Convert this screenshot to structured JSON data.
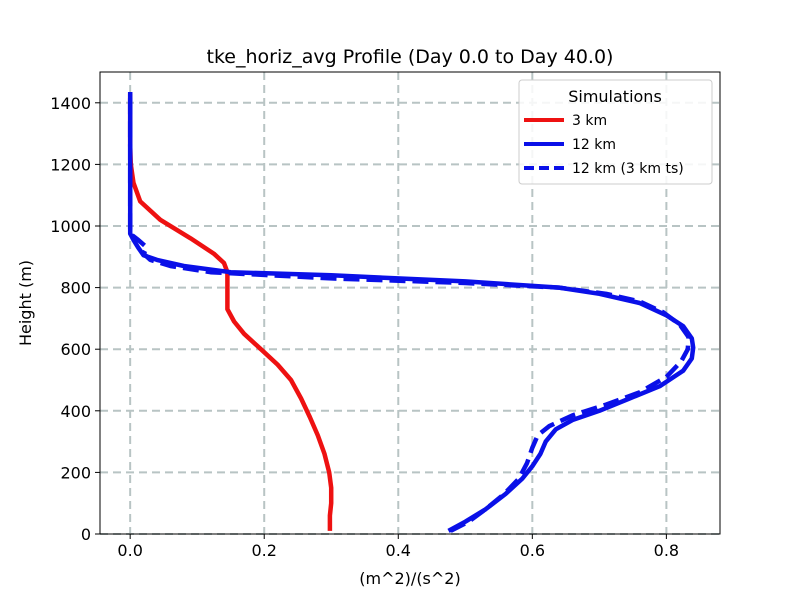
{
  "chart_data": {
    "type": "line",
    "title": "tke_horiz_avg Profile (Day 0.0 to Day 40.0)",
    "xlabel": "(m^2)/(s^2)",
    "ylabel": "Height (m)",
    "xlim": [
      -0.045,
      0.88
    ],
    "ylim": [
      0,
      1500
    ],
    "xticks": [
      0.0,
      0.2,
      0.4,
      0.6,
      0.8
    ],
    "xtick_labels": [
      "0.0",
      "0.2",
      "0.4",
      "0.6",
      "0.8"
    ],
    "yticks": [
      0,
      200,
      400,
      600,
      800,
      1000,
      1200,
      1400
    ],
    "ytick_labels": [
      "0",
      "200",
      "400",
      "600",
      "800",
      "1000",
      "1200",
      "1400"
    ],
    "grid": true,
    "legend": {
      "title": "Simulations",
      "placement": "top-right"
    },
    "series": [
      {
        "name": "3 km",
        "color": "#ee1111",
        "style": "solid",
        "points": [
          [
            0.298,
            10
          ],
          [
            0.298,
            60
          ],
          [
            0.3,
            100
          ],
          [
            0.3,
            150
          ],
          [
            0.297,
            200
          ],
          [
            0.29,
            260
          ],
          [
            0.28,
            320
          ],
          [
            0.268,
            380
          ],
          [
            0.255,
            440
          ],
          [
            0.24,
            500
          ],
          [
            0.22,
            550
          ],
          [
            0.195,
            600
          ],
          [
            0.17,
            650
          ],
          [
            0.155,
            690
          ],
          [
            0.145,
            730
          ],
          [
            0.145,
            760
          ],
          [
            0.145,
            800
          ],
          [
            0.145,
            850
          ],
          [
            0.14,
            880
          ],
          [
            0.125,
            910
          ],
          [
            0.09,
            960
          ],
          [
            0.045,
            1020
          ],
          [
            0.015,
            1080
          ],
          [
            0.005,
            1140
          ],
          [
            0.001,
            1200
          ],
          [
            0.0,
            1260
          ],
          [
            0.0,
            1320
          ],
          [
            0.0,
            1380
          ],
          [
            0.0,
            1430
          ]
        ]
      },
      {
        "name": "12 km",
        "color": "#0a10e8",
        "style": "solid",
        "points": [
          [
            0.475,
            10
          ],
          [
            0.5,
            40
          ],
          [
            0.53,
            80
          ],
          [
            0.56,
            130
          ],
          [
            0.585,
            180
          ],
          [
            0.6,
            220
          ],
          [
            0.612,
            260
          ],
          [
            0.62,
            300
          ],
          [
            0.635,
            340
          ],
          [
            0.66,
            370
          ],
          [
            0.7,
            400
          ],
          [
            0.745,
            440
          ],
          [
            0.79,
            480
          ],
          [
            0.825,
            530
          ],
          [
            0.838,
            570
          ],
          [
            0.84,
            605
          ],
          [
            0.838,
            635
          ],
          [
            0.825,
            675
          ],
          [
            0.8,
            710
          ],
          [
            0.76,
            750
          ],
          [
            0.7,
            780
          ],
          [
            0.64,
            800
          ],
          [
            0.5,
            820
          ],
          [
            0.3,
            840
          ],
          [
            0.15,
            850
          ],
          [
            0.08,
            870
          ],
          [
            0.04,
            890
          ],
          [
            0.02,
            905
          ],
          [
            0.012,
            930
          ],
          [
            0.005,
            955
          ],
          [
            0.0,
            975
          ],
          [
            0.0,
            1050
          ],
          [
            0.0,
            1200
          ],
          [
            0.0,
            1320
          ],
          [
            0.0,
            1435
          ]
        ]
      },
      {
        "name": "12 km (3 km ts)",
        "color": "#0a10e8",
        "style": "dashed",
        "points": [
          [
            0.478,
            10
          ],
          [
            0.505,
            40
          ],
          [
            0.53,
            80
          ],
          [
            0.558,
            130
          ],
          [
            0.58,
            180
          ],
          [
            0.592,
            230
          ],
          [
            0.6,
            280
          ],
          [
            0.608,
            320
          ],
          [
            0.625,
            350
          ],
          [
            0.66,
            385
          ],
          [
            0.71,
            420
          ],
          [
            0.76,
            460
          ],
          [
            0.8,
            510
          ],
          [
            0.822,
            560
          ],
          [
            0.832,
            600
          ],
          [
            0.833,
            640
          ],
          [
            0.82,
            680
          ],
          [
            0.795,
            720
          ],
          [
            0.76,
            755
          ],
          [
            0.71,
            780
          ],
          [
            0.64,
            800
          ],
          [
            0.5,
            815
          ],
          [
            0.3,
            830
          ],
          [
            0.12,
            850
          ],
          [
            0.06,
            870
          ],
          [
            0.03,
            890
          ],
          [
            0.02,
            910
          ],
          [
            0.025,
            930
          ],
          [
            0.012,
            955
          ],
          [
            0.0,
            975
          ],
          [
            0.0,
            1050
          ],
          [
            0.0,
            1200
          ],
          [
            0.0,
            1320
          ],
          [
            0.0,
            1435
          ]
        ]
      }
    ]
  }
}
